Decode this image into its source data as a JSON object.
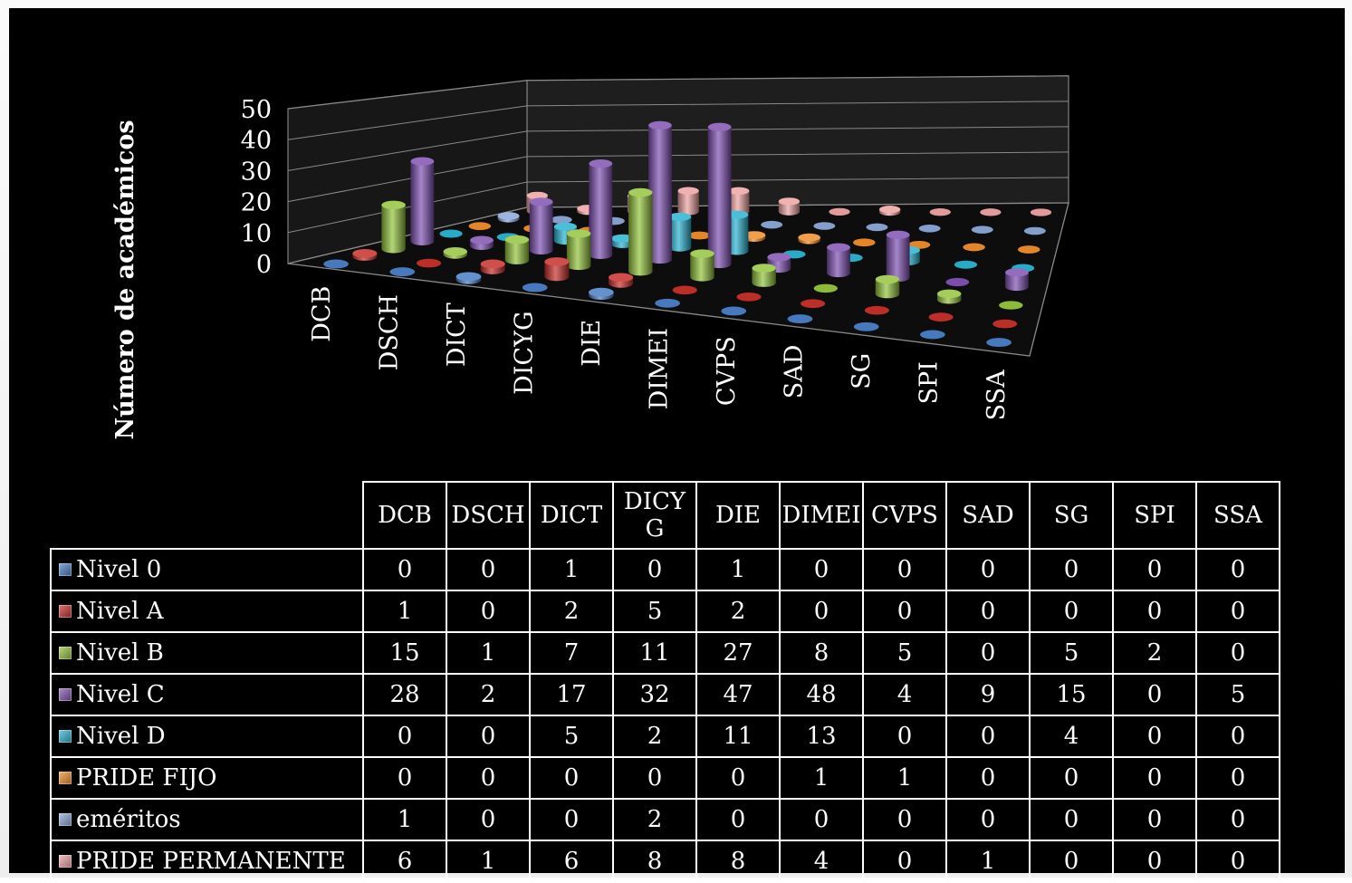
{
  "chart_data": {
    "type": "bar",
    "subtype": "3d-cylinder",
    "title": "",
    "ylabel": "Número de académicos",
    "xlabel": "",
    "ylim": [
      0,
      50
    ],
    "yticks": [
      "0",
      "10",
      "20",
      "30",
      "40",
      "50"
    ],
    "grid": true,
    "categories": [
      "DCB",
      "DSCH",
      "DICT",
      "DICYG",
      "DIE",
      "DIMEI",
      "CVPS",
      "SAD",
      "SG",
      "SPI",
      "SSA"
    ],
    "table_headers": [
      "DCB",
      "DSCH",
      "DICT",
      "DICY\nG",
      "DIE",
      "DIMEI",
      "CVPS",
      "SAD",
      "SG",
      "SPI",
      "SSA"
    ],
    "series": [
      {
        "name": "Nivel 0",
        "color": "#4a7fc7",
        "values": [
          0,
          0,
          1,
          0,
          1,
          0,
          0,
          0,
          0,
          0,
          0
        ]
      },
      {
        "name": "Nivel A",
        "color": "#c8302b",
        "values": [
          1,
          0,
          2,
          5,
          2,
          0,
          0,
          0,
          0,
          0,
          0
        ]
      },
      {
        "name": "Nivel B",
        "color": "#94c43c",
        "values": [
          15,
          1,
          7,
          11,
          27,
          8,
          5,
          0,
          5,
          2,
          0
        ]
      },
      {
        "name": "Nivel C",
        "color": "#8052b3",
        "values": [
          28,
          2,
          17,
          32,
          47,
          48,
          4,
          9,
          15,
          0,
          5
        ]
      },
      {
        "name": "Nivel D",
        "color": "#2bb3d1",
        "values": [
          0,
          0,
          5,
          2,
          11,
          13,
          0,
          0,
          4,
          0,
          0
        ]
      },
      {
        "name": "PRIDE FIJO",
        "color": "#f08d2a",
        "values": [
          0,
          0,
          0,
          0,
          0,
          1,
          1,
          0,
          0,
          0,
          0
        ]
      },
      {
        "name": "eméritos",
        "color": "#8ca7d8",
        "values": [
          1,
          0,
          0,
          2,
          0,
          0,
          0,
          0,
          0,
          0,
          0
        ]
      },
      {
        "name": "PRIDE PERMANENTE",
        "color": "#eea3a3",
        "values": [
          6,
          1,
          6,
          8,
          8,
          4,
          0,
          1,
          0,
          0,
          0
        ]
      }
    ]
  }
}
